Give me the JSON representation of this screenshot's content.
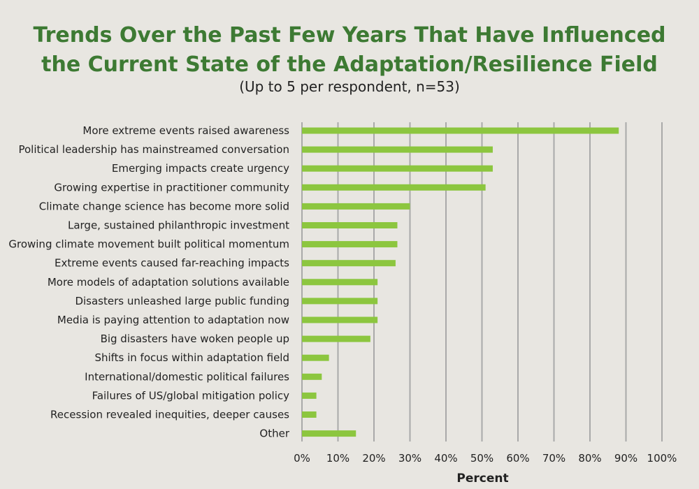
{
  "chart_data": {
    "type": "bar",
    "orientation": "horizontal",
    "title_line1": "Trends Over the Past Few Years That Have Influenced",
    "title_line2": "the Current State of the Adaptation/Resilience Field",
    "subtitle": "(Up to 5 per respondent, n=53)",
    "xlabel": "Percent",
    "ylabel": "",
    "xlim": [
      0,
      100
    ],
    "grid": true,
    "ticks": [
      "0%",
      "10%",
      "20%",
      "30%",
      "40%",
      "50%",
      "60%",
      "70%",
      "80%",
      "90%",
      "100%"
    ],
    "categories": [
      "More extreme events raised awareness",
      "Political leadership has mainstreamed conversation",
      "Emerging impacts create urgency",
      "Growing expertise in practitioner community",
      "Climate change science has become more solid",
      "Large, sustained philanthropic investment",
      "Growing climate movement built political momentum",
      "Extreme events caused far-reaching impacts",
      "More models of adaptation solutions available",
      "Disasters unleashed large public funding",
      "Media is paying attention to adaptation now",
      "Big disasters have woken people up",
      "Shifts in focus within adaptation field",
      "International/domestic political failures",
      "Failures of US/global mitigation policy",
      "Recession revealed inequities, deeper causes",
      "Other"
    ],
    "values": [
      88,
      53,
      53,
      51,
      30,
      26.5,
      26.5,
      26,
      21,
      21,
      21,
      19,
      7.5,
      5.5,
      4,
      4,
      15
    ],
    "colors": {
      "bar": "#8cc63f",
      "grid": "#a9a9a9",
      "title": "#3d7a33"
    }
  }
}
